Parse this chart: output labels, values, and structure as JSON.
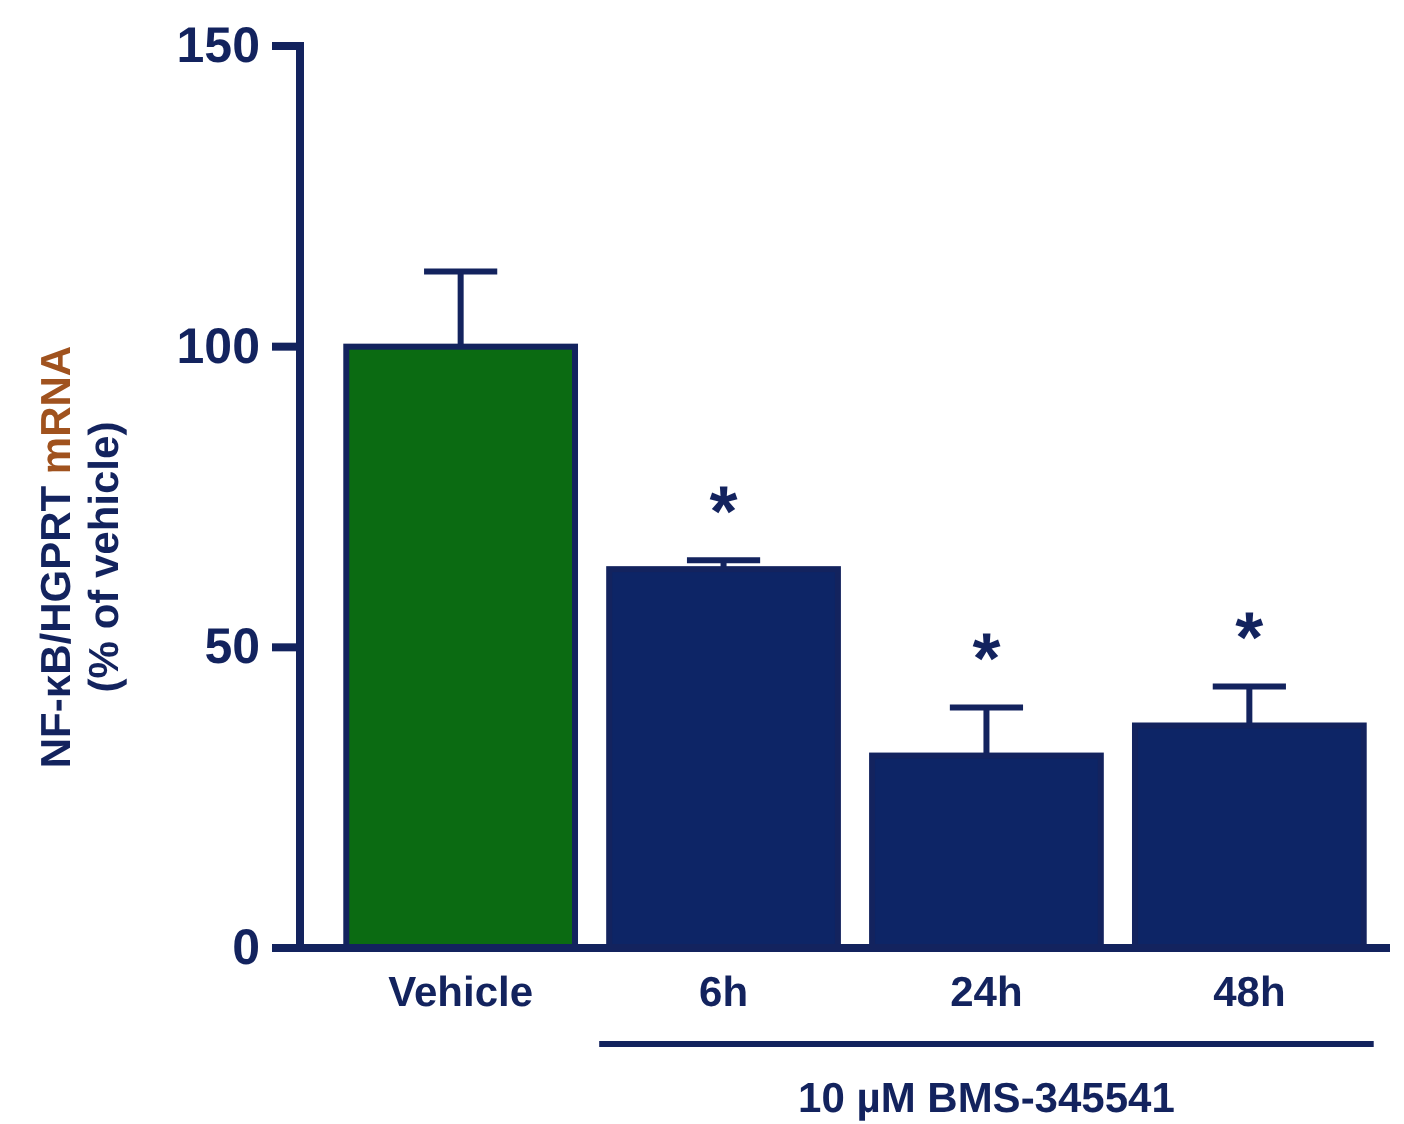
{
  "chart_data": {
    "type": "bar",
    "ylabel": "NF-κB/HGPRT mRNA\n(% of vehicle)",
    "categories": [
      "Vehicle",
      "6h",
      "24h",
      "48h"
    ],
    "values": [
      100,
      63,
      32,
      37
    ],
    "errors": [
      12.5,
      1.5,
      8,
      6.5
    ],
    "colors": [
      "#0b6b12",
      "#0d2566",
      "#0d2566",
      "#0d2566"
    ],
    "ylim": [
      0,
      150
    ],
    "yticks": [
      0,
      50,
      100,
      150
    ],
    "grid": false,
    "annotations": [
      "*",
      "*",
      "*",
      "10 µM BMS-345541"
    ]
  }
}
